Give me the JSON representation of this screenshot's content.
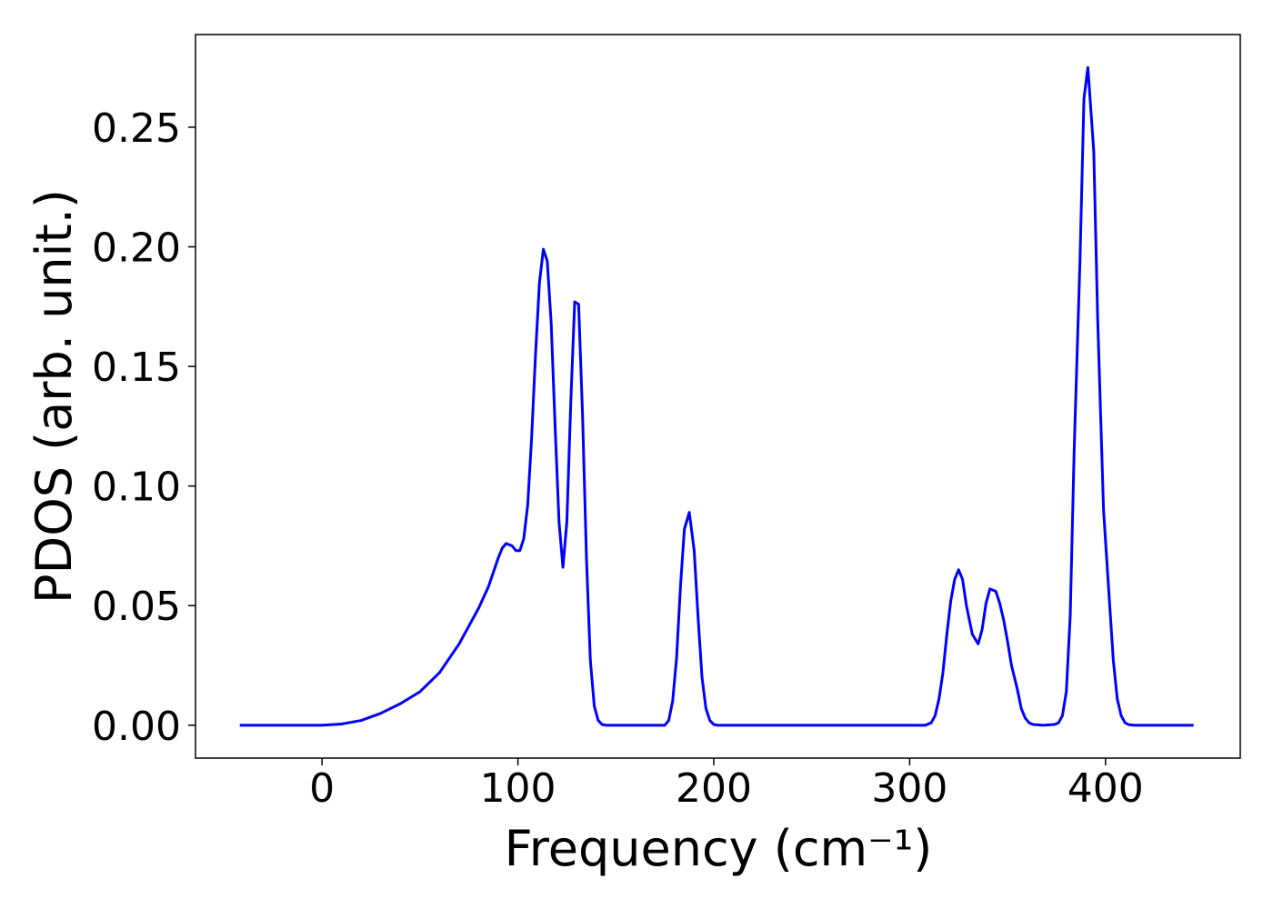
{
  "chart_data": {
    "type": "line",
    "x_label": "Frequency (cm⁻¹)",
    "y_label": "PDOS (arb. unit.)",
    "x": [
      -42,
      0,
      10,
      20,
      30,
      40,
      50,
      60,
      70,
      80,
      85,
      90,
      92,
      94,
      97,
      99,
      101,
      103,
      105,
      107,
      109,
      111,
      113,
      115,
      117,
      119,
      121,
      123,
      125,
      127,
      129,
      131,
      133,
      135,
      137,
      139,
      141,
      143,
      145,
      175,
      177,
      179,
      181,
      183,
      185,
      187.5,
      190,
      192,
      194,
      196,
      198,
      200,
      202,
      308,
      311,
      313,
      315,
      317,
      319,
      321,
      323,
      325,
      327,
      329,
      332,
      335,
      337,
      339,
      341,
      344,
      346,
      348,
      350,
      352,
      355,
      357,
      359,
      361,
      363,
      368,
      374,
      376,
      378,
      380,
      382,
      384,
      387,
      389,
      391,
      394,
      396,
      399,
      402,
      404,
      406,
      408,
      410,
      412,
      415,
      445
    ],
    "series": [
      {
        "color": "#0000ff",
        "values": [
          0,
          0,
          0.0005,
          0.002,
          0.005,
          0.009,
          0.014,
          0.022,
          0.034,
          0.049,
          0.058,
          0.07,
          0.074,
          0.076,
          0.075,
          0.073,
          0.073,
          0.078,
          0.092,
          0.12,
          0.155,
          0.185,
          0.199,
          0.194,
          0.168,
          0.125,
          0.085,
          0.066,
          0.085,
          0.135,
          0.177,
          0.176,
          0.13,
          0.07,
          0.027,
          0.008,
          0.002,
          0.0003,
          0,
          0,
          0.002,
          0.01,
          0.028,
          0.058,
          0.082,
          0.089,
          0.073,
          0.045,
          0.02,
          0.007,
          0.002,
          0.0003,
          0,
          0,
          0.001,
          0.004,
          0.011,
          0.022,
          0.038,
          0.052,
          0.061,
          0.065,
          0.061,
          0.05,
          0.038,
          0.034,
          0.04,
          0.051,
          0.057,
          0.056,
          0.051,
          0.044,
          0.035,
          0.025,
          0.015,
          0.007,
          0.003,
          0.001,
          0.0003,
          0,
          0.0003,
          0.001,
          0.004,
          0.014,
          0.046,
          0.115,
          0.195,
          0.262,
          0.275,
          0.24,
          0.17,
          0.09,
          0.052,
          0.027,
          0.011,
          0.004,
          0.001,
          0.0002,
          0,
          0
        ]
      }
    ],
    "xlim": [
      -64.6,
      468.8
    ],
    "ylim": [
      -0.01375,
      0.28875
    ],
    "xticks": [
      0,
      100,
      200,
      300,
      400
    ],
    "yticks": [
      {
        "value": 0,
        "label": "0.00"
      },
      {
        "value": 0.05,
        "label": "0.05"
      },
      {
        "value": 0.1,
        "label": "0.10"
      },
      {
        "value": 0.15,
        "label": "0.15"
      },
      {
        "value": 0.2,
        "label": "0.20"
      },
      {
        "value": 0.25,
        "label": "0.25"
      }
    ]
  }
}
